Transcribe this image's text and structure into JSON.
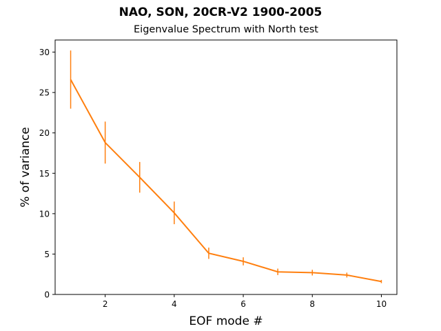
{
  "chart_data": {
    "type": "line",
    "title": "NAO, SON, 20CR-V2 1900-2005",
    "subtitle": "Eigenvalue Spectrum with North test",
    "xlabel": "EOF mode #",
    "ylabel": "% of variance",
    "xlim": [
      0.55,
      10.45
    ],
    "ylim": [
      0,
      31.5
    ],
    "xticks": [
      2,
      4,
      6,
      8,
      10
    ],
    "yticks": [
      0,
      5,
      10,
      15,
      20,
      25,
      30
    ],
    "grid": false,
    "series": [
      {
        "color": "#ff7f0e",
        "x": [
          1,
          2,
          3,
          4,
          5,
          6,
          7,
          8,
          9,
          10
        ],
        "y": [
          26.6,
          18.8,
          14.5,
          10.1,
          5.1,
          4.1,
          2.8,
          2.7,
          2.4,
          1.6
        ],
        "error": [
          3.6,
          2.6,
          1.9,
          1.4,
          0.7,
          0.5,
          0.4,
          0.35,
          0.3,
          0.2
        ]
      }
    ]
  }
}
